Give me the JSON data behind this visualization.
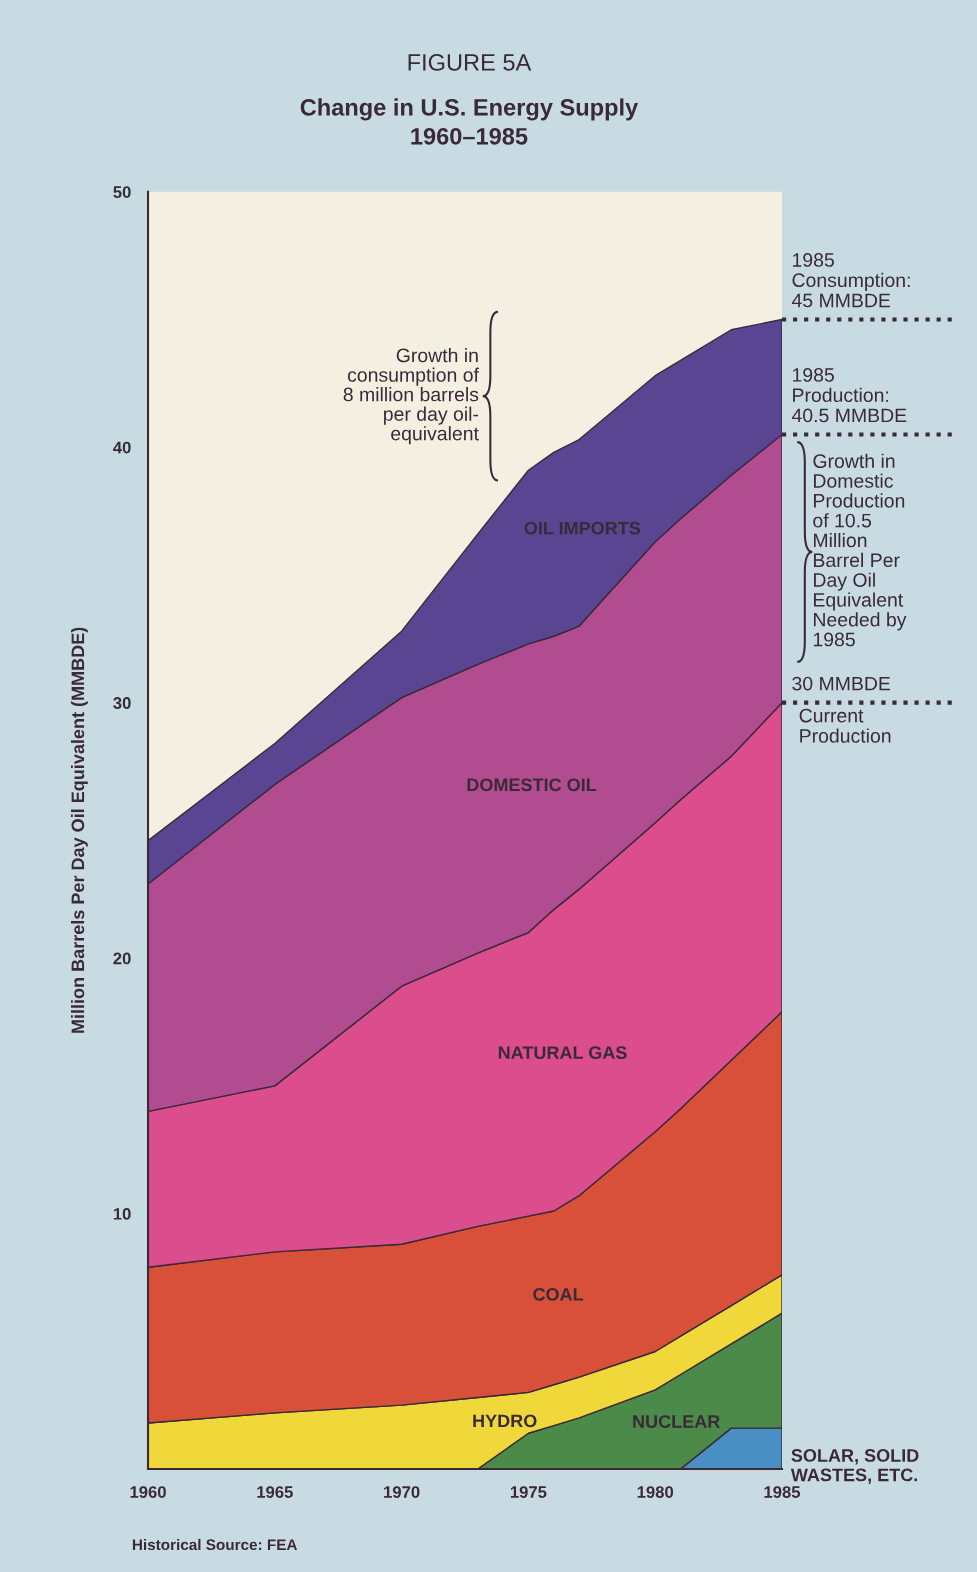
{
  "chart_data": {
    "type": "area",
    "stacked": true,
    "title": "Change in U.S. Energy Supply\n1960–1985",
    "ylabel": "Million Barrels Per Day Oil Equivalent (MMBDE)",
    "x": [
      1960,
      1965,
      1970,
      1973,
      1975,
      1976,
      1977,
      1980,
      1981,
      1983,
      1985
    ],
    "xlim": [
      1960,
      1985
    ],
    "xticks": [
      1960,
      1965,
      1970,
      1975,
      1980,
      1985
    ],
    "ylim": [
      0,
      50
    ],
    "yticks": [
      10,
      20,
      30,
      40,
      50
    ],
    "grid": false,
    "legend": false,
    "line_style": "solid",
    "series": [
      {
        "name": "SOLAR, SOLID WASTES, ETC.",
        "color": "#4a8fc4",
        "values": [
          0,
          0,
          0,
          0,
          0,
          0,
          0,
          0,
          0,
          1.6,
          1.6
        ]
      },
      {
        "name": "NUCLEAR",
        "color": "#4b8a48",
        "values": [
          0,
          0,
          0,
          0,
          1.4,
          1.7,
          2.0,
          3.1,
          3.7,
          3.3,
          4.5
        ]
      },
      {
        "name": "HYDRO",
        "color": "#f0d83a",
        "values": [
          1.8,
          2.2,
          2.5,
          2.8,
          1.6,
          1.6,
          1.6,
          1.5,
          1.5,
          1.5,
          1.5
        ]
      },
      {
        "name": "COAL",
        "color": "#d8503a",
        "values": [
          6.1,
          6.3,
          6.3,
          6.7,
          6.9,
          6.8,
          7.1,
          8.6,
          8.9,
          9.6,
          10.3
        ]
      },
      {
        "name": "NATURAL GAS",
        "color": "#db4d8c",
        "values": [
          6.1,
          6.5,
          10.1,
          10.7,
          11.1,
          11.8,
          12.0,
          12.1,
          12.1,
          11.9,
          12.1
        ]
      },
      {
        "name": "DOMESTIC OIL",
        "color": "#b04c8f",
        "values": [
          8.9,
          11.8,
          11.3,
          11.3,
          11.3,
          10.7,
          10.3,
          11.0,
          11.0,
          11.0,
          10.5
        ]
      },
      {
        "name": "OIL IMPORTS",
        "color": "#5a4592",
        "values": [
          1.7,
          1.6,
          2.6,
          5.1,
          6.8,
          7.2,
          7.3,
          6.5,
          6.2,
          5.7,
          4.5
        ]
      }
    ],
    "ref_lines": [
      {
        "axis": "y",
        "value": 45,
        "label": "1985\nConsumption:\n45 MMBDE",
        "line_style": "dotted"
      },
      {
        "axis": "y",
        "value": 40.5,
        "label": "1985\nProduction:\n40.5 MMBDE",
        "line_style": "dotted"
      },
      {
        "axis": "y",
        "value": 30,
        "label": "30 MMBDE",
        "line_style": "dotted"
      }
    ],
    "annotations": [
      "FIGURE 5A",
      "Historical Source: FEA",
      "Growth in\nconsumption of\n8 million barrels\nper day oil-\nequivalent",
      "Growth in\nDomestic\nProduction\nof 10.5\nMillion\nBarrel Per\nDay Oil\nEquivalent\nNeeded by\n1985",
      {
        "text": "Current\nProduction",
        "x": 1985,
        "y": 30
      }
    ]
  }
}
